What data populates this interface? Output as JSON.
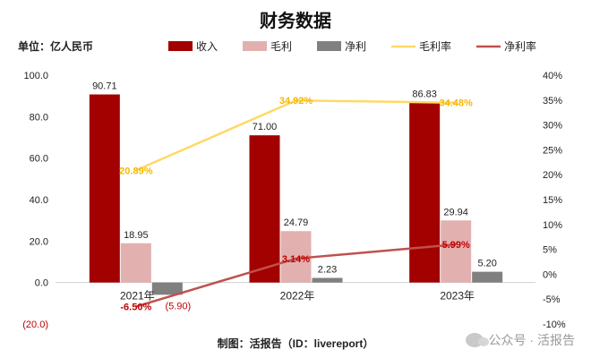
{
  "chart_data": {
    "type": "bar",
    "title": "财务数据",
    "unit_label": "单位：亿人民币",
    "categories": [
      "2021年",
      "2022年",
      "2023年"
    ],
    "left_axis": {
      "range": [
        -20,
        100
      ],
      "tick_labels": [
        "100.0",
        "80.0",
        "60.0",
        "40.0",
        "20.0",
        "0.0",
        "(20.0)"
      ],
      "tick_values": [
        100,
        80,
        60,
        40,
        20,
        0,
        -20
      ]
    },
    "right_axis": {
      "range": [
        -10,
        40
      ],
      "tick_labels": [
        "40%",
        "35%",
        "30%",
        "25%",
        "20%",
        "15%",
        "10%",
        "5%",
        "0%",
        "-5%",
        "-10%"
      ],
      "tick_values": [
        40,
        35,
        30,
        25,
        20,
        15,
        10,
        5,
        0,
        -5,
        -10
      ]
    },
    "series": [
      {
        "name": "收入",
        "kind": "bar",
        "axis": "left",
        "color": "#a30000",
        "values": [
          90.71,
          71.0,
          86.83
        ],
        "labels": [
          "90.71",
          "71.00",
          "86.83"
        ]
      },
      {
        "name": "毛利",
        "kind": "bar",
        "axis": "left",
        "color": "#e3b0b0",
        "values": [
          18.95,
          24.79,
          29.94
        ],
        "labels": [
          "18.95",
          "24.79",
          "29.94"
        ]
      },
      {
        "name": "净利",
        "kind": "bar",
        "axis": "left",
        "color": "#808080",
        "values": [
          -5.9,
          2.23,
          5.2
        ],
        "labels": [
          "(5.90)",
          "2.23",
          "5.20"
        ]
      },
      {
        "name": "毛利率",
        "kind": "line",
        "axis": "right",
        "color": "#ffd966",
        "label_color": "#f5b800",
        "values": [
          20.89,
          34.92,
          34.48
        ],
        "labels": [
          "20.89%",
          "34.92%",
          "34.48%"
        ]
      },
      {
        "name": "净利率",
        "kind": "line",
        "axis": "right",
        "color": "#c0504d",
        "label_color": "#c00000",
        "values": [
          -6.5,
          3.14,
          5.99
        ],
        "labels": [
          "-6.50%",
          "3.14%",
          "5.99%"
        ]
      }
    ],
    "legend_position": "top",
    "grid": false,
    "negative_label_color": "#c00000"
  },
  "footer": {
    "source_text": "制图：活报告（ID：livereport）"
  },
  "watermark": {
    "text": "公众号 · 活报告",
    "icon": "wechat-icon"
  }
}
